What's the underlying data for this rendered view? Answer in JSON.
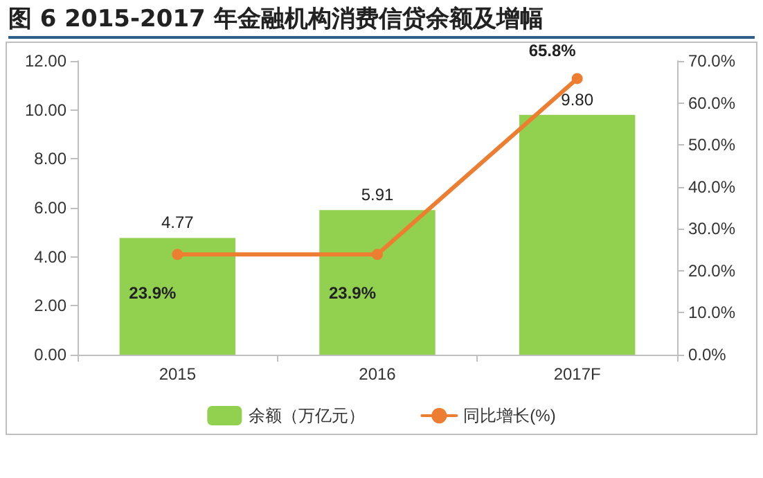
{
  "chart_data": {
    "type": "bar",
    "title": "图 6  2015-2017 年金融机构消费信贷余额及增幅",
    "categories": [
      "2015",
      "2016",
      "2017F"
    ],
    "series": [
      {
        "name": "余额（万亿元）",
        "color": "#92d050",
        "values": [
          4.77,
          5.91,
          9.8
        ],
        "value_labels": [
          "4.77",
          "5.91",
          "9.80"
        ]
      },
      {
        "name": "同比增长(%)",
        "type": "line",
        "axis": "y2",
        "color": "#ed7d31",
        "values": [
          23.9,
          23.9,
          65.8
        ],
        "value_labels": [
          "23.9%",
          "23.9%",
          "65.8%"
        ]
      }
    ],
    "ylim": [
      0,
      12
    ],
    "yticks": [
      {
        "value": 0,
        "label": "0.00"
      },
      {
        "value": 2,
        "label": "2.00"
      },
      {
        "value": 4,
        "label": "4.00"
      },
      {
        "value": 6,
        "label": "6.00"
      },
      {
        "value": 8,
        "label": "8.00"
      },
      {
        "value": 10,
        "label": "10.00"
      },
      {
        "value": 12,
        "label": "12.00"
      }
    ],
    "y2lim": [
      0,
      70
    ],
    "y2ticks": [
      {
        "value": 0,
        "label": "0.0%"
      },
      {
        "value": 10,
        "label": "10.0%"
      },
      {
        "value": 20,
        "label": "20.0%"
      },
      {
        "value": 30,
        "label": "30.0%"
      },
      {
        "value": 40,
        "label": "40.0%"
      },
      {
        "value": 50,
        "label": "50.0%"
      },
      {
        "value": 60,
        "label": "60.0%"
      },
      {
        "value": 70,
        "label": "70.0%"
      }
    ],
    "grid": false,
    "legend": "bottom",
    "marker": "circle"
  }
}
